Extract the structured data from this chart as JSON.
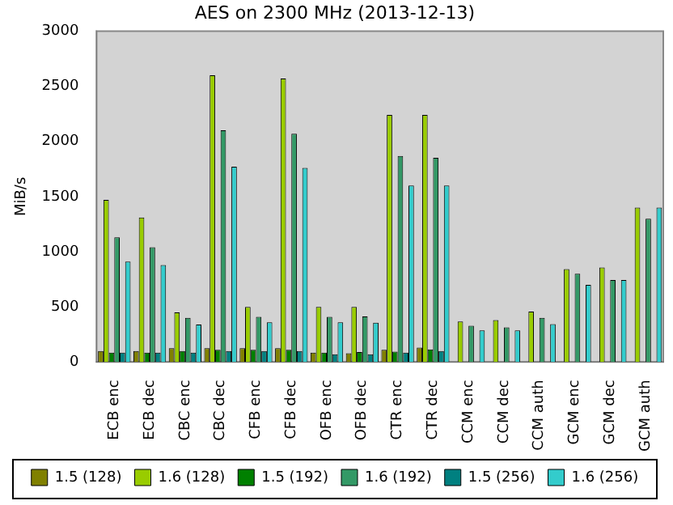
{
  "chart_data": {
    "type": "bar",
    "title": "AES on 2300 MHz (2013-12-13)",
    "ylabel": "MiB/s",
    "categories": [
      "ECB enc",
      "ECB dec",
      "CBC enc",
      "CBC dec",
      "CFB enc",
      "CFB dec",
      "OFB enc",
      "OFB dec",
      "CTR enc",
      "CTR dec",
      "CCM enc",
      "CCM dec",
      "CCM auth",
      "GCM enc",
      "GCM dec",
      "GCM auth"
    ],
    "series": [
      {
        "name": "1.5 (128)",
        "color": "#808000",
        "values": [
          100,
          100,
          125,
          125,
          125,
          125,
          85,
          80,
          110,
          130,
          null,
          null,
          null,
          null,
          null,
          null
        ]
      },
      {
        "name": "1.6 (128)",
        "color": "#99cc00",
        "values": [
          1470,
          1310,
          450,
          2600,
          500,
          2570,
          500,
          500,
          2240,
          2240,
          367,
          381,
          457,
          843,
          857,
          1400
        ]
      },
      {
        "name": "1.5 (192)",
        "color": "#008000",
        "values": [
          85,
          85,
          100,
          110,
          110,
          110,
          85,
          90,
          95,
          115,
          null,
          null,
          null,
          null,
          null,
          null
        ]
      },
      {
        "name": "1.6 (192)",
        "color": "#339966",
        "values": [
          1130,
          1040,
          400,
          2100,
          410,
          2070,
          410,
          414,
          1867,
          1852,
          329,
          314,
          400,
          800,
          743,
          1300
        ]
      },
      {
        "name": "1.5 (256)",
        "color": "#008080",
        "values": [
          85,
          85,
          85,
          100,
          100,
          100,
          70,
          70,
          85,
          100,
          null,
          null,
          null,
          null,
          null,
          null
        ]
      },
      {
        "name": "1.6 (256)",
        "color": "#33cccc",
        "values": [
          910,
          880,
          340,
          1770,
          360,
          1760,
          360,
          357,
          1600,
          1600,
          286,
          286,
          343,
          700,
          743,
          1400
        ]
      }
    ],
    "ylim": [
      0,
      3000
    ],
    "yticks": [
      0,
      500,
      1000,
      1500,
      2000,
      2500,
      3000
    ],
    "grid": false,
    "legend": "bottom"
  }
}
